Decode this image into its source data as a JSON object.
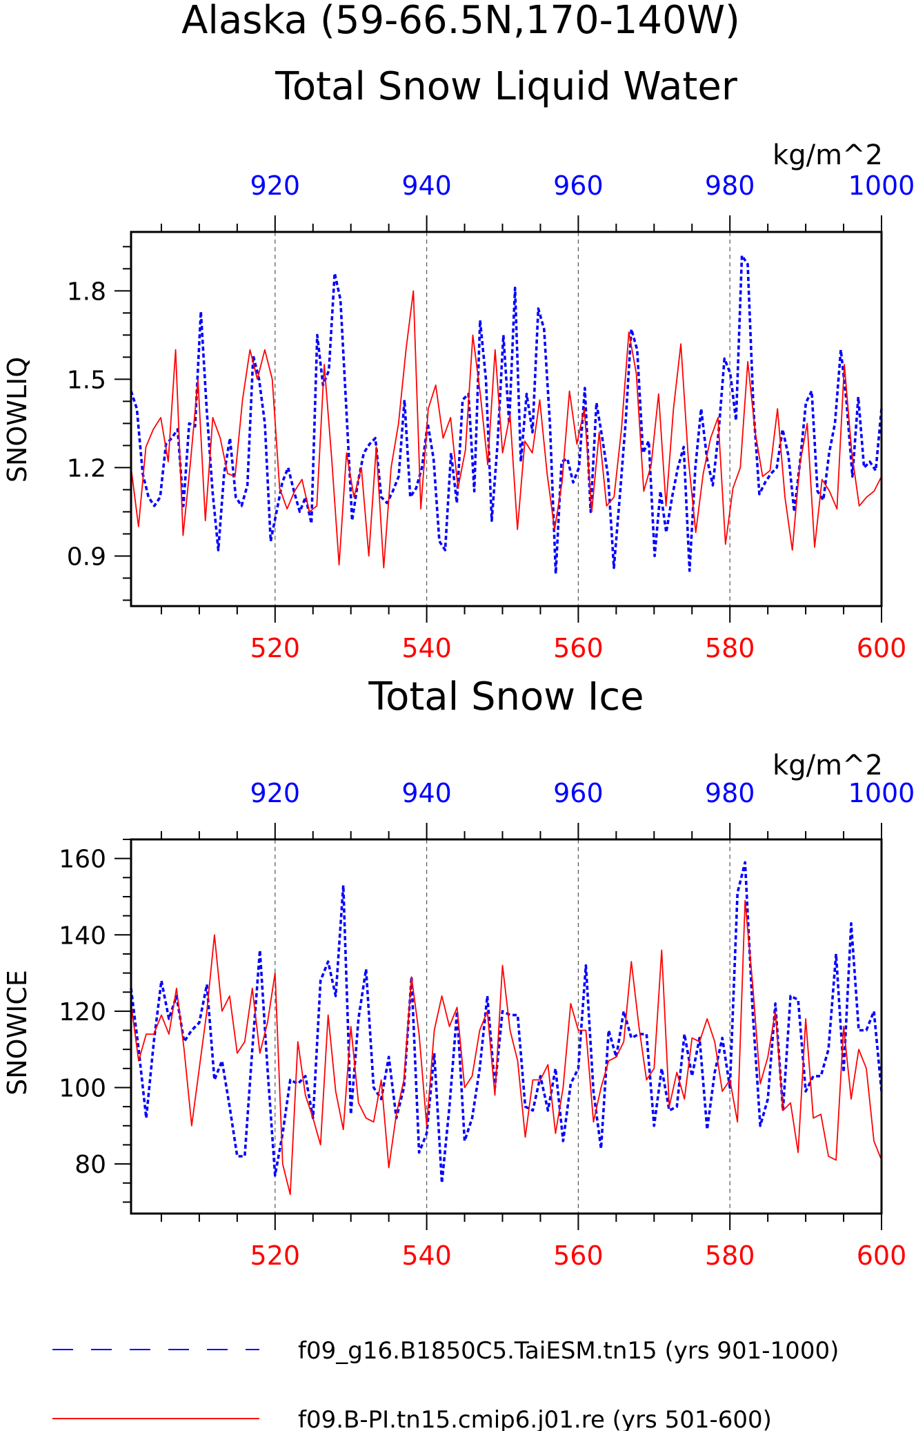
{
  "figure": {
    "title_line1": "Alaska (59-66.5N,170-140W)",
    "colors": {
      "blue": "#0000ff",
      "red": "#ff0000",
      "axis": "#000000",
      "grid": "#555555"
    }
  },
  "legend": {
    "blue_label": "f09_g16.B1850C5.TaiESM.tn15 (yrs 901-1000)",
    "red_label": "f09.B-PI.tn15.cmip6.j01.re (yrs 501-600)"
  },
  "chart_data": [
    {
      "type": "line",
      "title": "Total Snow Liquid Water",
      "units": "kg/m^2",
      "ylabel": "SNOWLIQ",
      "ylim": [
        0.73,
        2.0
      ],
      "yticks": [
        0.9,
        1.2,
        1.5,
        1.8
      ],
      "ytick_labels": [
        "0.9",
        "1.2",
        "1.5",
        "1.8"
      ],
      "x_top": {
        "range": [
          901,
          1000
        ],
        "ticks": [
          920,
          940,
          960,
          980,
          1000
        ],
        "tick_labels": [
          "920",
          "940",
          "960",
          "980",
          "1000"
        ]
      },
      "x_bottom": {
        "range": [
          501,
          600
        ],
        "ticks": [
          520,
          540,
          560,
          580,
          600
        ],
        "tick_labels": [
          "520",
          "540",
          "560",
          "580",
          "600"
        ]
      },
      "grid": "dashed vertical lines at top/bottom major ticks",
      "series": [
        {
          "name": "f09_g16.B1850C5.TaiESM.tn15 (yrs 901-1000)",
          "axis": "top",
          "color": "#0000ff",
          "style": "dashed",
          "x_start": 901,
          "values": [
            1.46,
            1.4,
            1.18,
            1.1,
            1.07,
            1.1,
            1.28,
            1.3,
            1.33,
            1.07,
            1.35,
            1.34,
            1.73,
            1.4,
            1.12,
            0.92,
            1.18,
            1.3,
            1.1,
            1.07,
            1.14,
            1.58,
            1.5,
            1.35,
            0.95,
            1.05,
            1.15,
            1.2,
            1.12,
            1.05,
            1.1,
            1.01,
            1.65,
            1.48,
            1.53,
            1.86,
            1.77,
            1.4,
            1.02,
            1.15,
            1.25,
            1.28,
            1.3,
            1.1,
            1.08,
            1.12,
            1.17,
            1.43,
            1.1,
            1.13,
            1.2,
            1.35,
            1.23,
            0.95,
            0.92,
            1.25,
            1.08,
            1.43,
            1.45,
            1.12,
            1.7,
            1.5,
            1.02,
            1.28,
            1.65,
            1.35,
            1.81,
            1.22,
            1.45,
            1.32,
            1.74,
            1.67,
            1.35,
            0.84,
            1.22,
            1.23,
            1.15,
            1.2,
            1.47,
            1.05,
            1.42,
            1.3,
            1.17,
            0.86,
            1.1,
            1.35,
            1.67,
            1.6,
            1.25,
            1.29,
            0.9,
            1.12,
            0.98,
            1.1,
            1.2,
            1.27,
            0.85,
            1.2,
            1.4,
            1.23,
            1.14,
            1.32,
            1.57,
            1.52,
            1.36,
            1.92,
            1.89,
            1.4,
            1.11,
            1.15,
            1.18,
            1.2,
            1.33,
            1.24,
            1.05,
            1.22,
            1.42,
            1.46,
            1.12,
            1.09,
            1.25,
            1.35,
            1.6,
            1.42,
            1.17,
            1.44,
            1.2,
            1.22,
            1.19,
            1.4
          ],
          "note_values_per_year": 1.3
        },
        {
          "name": "f09.B-PI.tn15.cmip6.j01.re (yrs 501-600)",
          "axis": "bottom",
          "color": "#ff0000",
          "style": "solid",
          "x_start": 501,
          "values": [
            1.2,
            1.0,
            1.27,
            1.33,
            1.37,
            1.22,
            1.6,
            0.97,
            1.22,
            1.5,
            1.02,
            1.37,
            1.3,
            1.18,
            1.17,
            1.43,
            1.6,
            1.5,
            1.6,
            1.5,
            1.13,
            1.06,
            1.12,
            1.16,
            1.05,
            1.07,
            1.55,
            1.23,
            0.87,
            1.25,
            1.1,
            1.2,
            0.9,
            1.27,
            0.86,
            1.2,
            1.35,
            1.6,
            1.8,
            1.06,
            1.4,
            1.48,
            1.3,
            1.37,
            1.13,
            1.26,
            1.65,
            1.45,
            1.21,
            1.6,
            1.25,
            1.38,
            0.99,
            1.29,
            1.25,
            1.43,
            1.18,
            0.99,
            1.15,
            1.46,
            1.28,
            1.4,
            1.05,
            1.32,
            1.07,
            1.1,
            1.33,
            1.66,
            1.52,
            1.12,
            1.21,
            1.45,
            1.07,
            1.4,
            1.62,
            1.23,
            0.98,
            1.18,
            1.3,
            1.37,
            0.94,
            1.13,
            1.2,
            1.56,
            1.32,
            1.17,
            1.19,
            1.4,
            1.1,
            0.92,
            1.21,
            1.35,
            0.93,
            1.16,
            1.12,
            1.06,
            1.55,
            1.25,
            1.07,
            1.1,
            1.12,
            1.17
          ]
        }
      ]
    },
    {
      "type": "line",
      "title": "Total Snow Ice",
      "units": "kg/m^2",
      "ylabel": "SNOWICE",
      "ylim": [
        67,
        165
      ],
      "yticks": [
        80,
        100,
        120,
        140,
        160
      ],
      "ytick_labels": [
        "80",
        "100",
        "120",
        "140",
        "160"
      ],
      "x_top": {
        "range": [
          901,
          1000
        ],
        "ticks": [
          920,
          940,
          960,
          980,
          1000
        ],
        "tick_labels": [
          "920",
          "940",
          "960",
          "980",
          "1000"
        ]
      },
      "x_bottom": {
        "range": [
          501,
          600
        ],
        "ticks": [
          520,
          540,
          560,
          580,
          600
        ],
        "tick_labels": [
          "520",
          "540",
          "560",
          "580",
          "600"
        ]
      },
      "grid": "dashed vertical lines at top/bottom major ticks",
      "series": [
        {
          "name": "f09_g16.B1850C5.TaiESM.tn15 (yrs 901-1000)",
          "axis": "top",
          "color": "#0000ff",
          "style": "dashed",
          "x_start": 901,
          "values": [
            126,
            110,
            92,
            112,
            128,
            118,
            124,
            112,
            115,
            117,
            127,
            102,
            107,
            95,
            82,
            82,
            110,
            136,
            105,
            77,
            88,
            102,
            101,
            103,
            92,
            128,
            133,
            124,
            153,
            93,
            118,
            131,
            100,
            97,
            108,
            92,
            100,
            129,
            83,
            88,
            109,
            75,
            95,
            120,
            86,
            92,
            105,
            124,
            100,
            120,
            119,
            119,
            95,
            94,
            103,
            94,
            105,
            86,
            101,
            105,
            132,
            99,
            84,
            115,
            108,
            120,
            113,
            114,
            114,
            90,
            105,
            94,
            95,
            114,
            103,
            113,
            89,
            104,
            113,
            100,
            151,
            159,
            120,
            90,
            97,
            122,
            94,
            124,
            123,
            99,
            103,
            103,
            110,
            135,
            104,
            143,
            115,
            115,
            120,
            99
          ],
          "note_one_value_per_year": true
        },
        {
          "name": "f09.B-PI.tn15.cmip6.j01.re (yrs 501-600)",
          "axis": "bottom",
          "color": "#ff0000",
          "style": "solid",
          "x_start": 501,
          "values": [
            122,
            107,
            114,
            114,
            119,
            114,
            126,
            110,
            90,
            105,
            120,
            140,
            120,
            124,
            109,
            112,
            126,
            109,
            117,
            130,
            80,
            72,
            112,
            98,
            92,
            85,
            119,
            99,
            89,
            116,
            96,
            92,
            91,
            102,
            79,
            93,
            102,
            129,
            114,
            90,
            115,
            124,
            116,
            121,
            100,
            103,
            115,
            120,
            98,
            132,
            115,
            107,
            87,
            102,
            102,
            106,
            88,
            100,
            122,
            115,
            115,
            91,
            100,
            107,
            108,
            112,
            133,
            116,
            102,
            105,
            136,
            95,
            104,
            97,
            113,
            112,
            118,
            112,
            99,
            102,
            91,
            149,
            127,
            101,
            108,
            120,
            94,
            96,
            83,
            118,
            92,
            93,
            82,
            81,
            116,
            97,
            110,
            105,
            86,
            81
          ]
        }
      ]
    }
  ]
}
